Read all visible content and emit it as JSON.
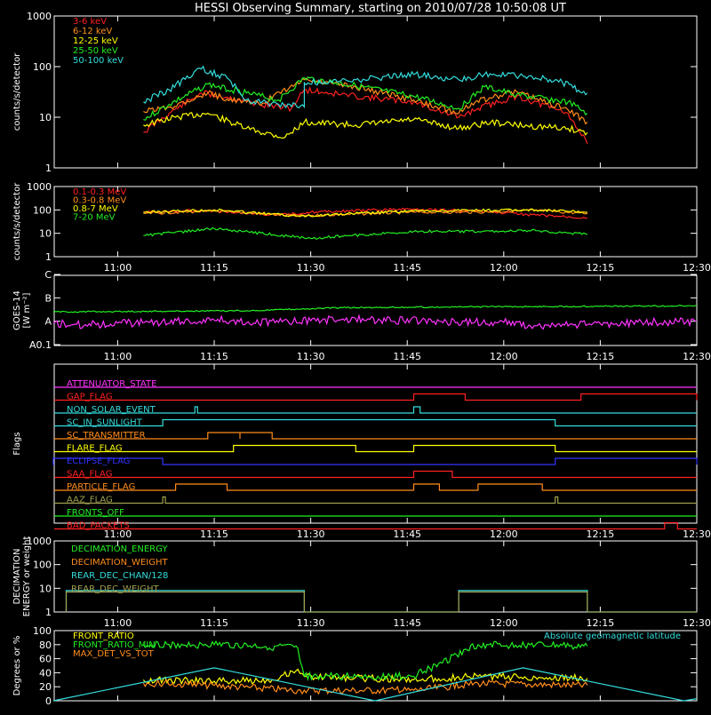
{
  "title": "HESSI Observing Summary, starting on 2010/07/28 10:50:08 UT",
  "time_ticks": [
    "11:00",
    "11:15",
    "11:30",
    "11:45",
    "12:00",
    "12:15",
    "12:30"
  ],
  "colors": {
    "background": "#000000",
    "axes": "#ffffff",
    "red": "#ff2020",
    "orange": "#ff8c1a",
    "yellow": "#ffff00",
    "green": "#22ee22",
    "cyan": "#33dddd",
    "magenta": "#ff33ff",
    "blue": "#3333ff",
    "olive": "#a0a050"
  },
  "chart_data": [
    {
      "id": "hxr",
      "type": "line",
      "ylabel": "counts/s/detector",
      "yscale": "log",
      "ylim": [
        1,
        1000
      ],
      "yticks": [
        "1",
        "10",
        "100",
        "1000"
      ],
      "legend": [
        {
          "name": "3-6 keV",
          "color": "#ff2020"
        },
        {
          "name": "6-12 keV",
          "color": "#ff8c1a"
        },
        {
          "name": "12-25 keV",
          "color": "#ffff00"
        },
        {
          "name": "25-50 keV",
          "color": "#22ee22"
        },
        {
          "name": "50-100 keV",
          "color": "#33dddd"
        }
      ],
      "series": [
        {
          "name": "3-6 keV",
          "color": "#ff2020",
          "points": [
            [
              "11:04",
              5
            ],
            [
              "11:08",
              12
            ],
            [
              "11:13",
              30
            ],
            [
              "11:17",
              25
            ],
            [
              "11:22",
              18
            ],
            [
              "11:27",
              15
            ],
            [
              "11:29",
              35
            ],
            [
              "11:37",
              26
            ],
            [
              "11:46",
              20
            ],
            [
              "11:53",
              10
            ],
            [
              "11:56",
              15
            ],
            [
              "12:02",
              26
            ],
            [
              "12:10",
              12
            ],
            [
              "12:13",
              3
            ]
          ]
        },
        {
          "name": "6-12 keV",
          "color": "#ff8c1a",
          "points": [
            [
              "11:04",
              13
            ],
            [
              "11:08",
              16
            ],
            [
              "11:14",
              30
            ],
            [
              "11:17",
              23
            ],
            [
              "11:22",
              18
            ],
            [
              "11:29",
              55
            ],
            [
              "11:37",
              40
            ],
            [
              "11:46",
              22
            ],
            [
              "11:53",
              12
            ],
            [
              "11:55",
              19
            ],
            [
              "12:02",
              32
            ],
            [
              "12:10",
              14
            ],
            [
              "12:13",
              8
            ]
          ]
        },
        {
          "name": "12-25 keV",
          "color": "#ffff00",
          "points": [
            [
              "11:04",
              7
            ],
            [
              "11:09",
              10
            ],
            [
              "11:14",
              12
            ],
            [
              "11:20",
              6
            ],
            [
              "11:26",
              4
            ],
            [
              "11:29",
              8
            ],
            [
              "11:37",
              7
            ],
            [
              "11:46",
              9
            ],
            [
              "11:53",
              6
            ],
            [
              "11:58",
              8
            ],
            [
              "12:02",
              7
            ],
            [
              "12:10",
              6
            ],
            [
              "12:13",
              5
            ]
          ]
        },
        {
          "name": "25-50 keV",
          "color": "#22ee22",
          "points": [
            [
              "11:04",
              9
            ],
            [
              "11:08",
              18
            ],
            [
              "11:14",
              45
            ],
            [
              "11:20",
              30
            ],
            [
              "11:25",
              22
            ],
            [
              "11:29",
              60
            ],
            [
              "11:37",
              42
            ],
            [
              "11:46",
              26
            ],
            [
              "11:53",
              15
            ],
            [
              "11:57",
              40
            ],
            [
              "12:02",
              28
            ],
            [
              "12:10",
              20
            ],
            [
              "12:13",
              12
            ]
          ]
        },
        {
          "name": "50-100 keV",
          "color": "#33dddd",
          "points": [
            [
              "11:04",
              20
            ],
            [
              "11:08",
              35
            ],
            [
              "11:13",
              90
            ],
            [
              "11:17",
              60
            ],
            [
              "11:20",
              22
            ],
            [
              "11:25",
              18
            ],
            [
              "11:29",
              16
            ],
            [
              "11:29",
              48
            ],
            [
              "11:37",
              55
            ],
            [
              "11:46",
              70
            ],
            [
              "11:53",
              55
            ],
            [
              "11:57",
              70
            ],
            [
              "12:03",
              65
            ],
            [
              "12:08",
              55
            ],
            [
              "12:13",
              30
            ]
          ]
        }
      ]
    },
    {
      "id": "gamma",
      "type": "line",
      "ylabel": "counts/s/detector",
      "yscale": "log",
      "ylim": [
        1,
        1000
      ],
      "yticks": [
        "1",
        "10",
        "100",
        "1000"
      ],
      "legend": [
        {
          "name": "0.1-0.3 MeV",
          "color": "#ff2020"
        },
        {
          "name": "0.3-0.8 MeV",
          "color": "#ff8c1a"
        },
        {
          "name": "0.8-7 MeV",
          "color": "#ffff00"
        },
        {
          "name": "7-20 MeV",
          "color": "#22ee22"
        }
      ],
      "series": [
        {
          "name": "0.1-0.3 MeV",
          "color": "#ff2020",
          "points": [
            [
              "11:04",
              80
            ],
            [
              "11:14",
              95
            ],
            [
              "11:25",
              60
            ],
            [
              "11:30",
              80
            ],
            [
              "11:46",
              110
            ],
            [
              "11:56",
              90
            ],
            [
              "12:05",
              60
            ],
            [
              "12:13",
              45
            ]
          ]
        },
        {
          "name": "0.3-0.8 MeV",
          "color": "#ff8c1a",
          "points": [
            [
              "11:04",
              70
            ],
            [
              "11:15",
              90
            ],
            [
              "11:28",
              55
            ],
            [
              "11:46",
              80
            ],
            [
              "11:56",
              80
            ],
            [
              "12:05",
              95
            ],
            [
              "12:13",
              70
            ]
          ]
        },
        {
          "name": "0.8-7 MeV",
          "color": "#ffff00",
          "points": [
            [
              "11:04",
              80
            ],
            [
              "11:15",
              100
            ],
            [
              "11:28",
              55
            ],
            [
              "11:46",
              90
            ],
            [
              "11:56",
              95
            ],
            [
              "12:05",
              100
            ],
            [
              "12:13",
              80
            ]
          ]
        },
        {
          "name": "7-20 MeV",
          "color": "#22ee22",
          "points": [
            [
              "11:04",
              8
            ],
            [
              "11:15",
              16
            ],
            [
              "11:30",
              6
            ],
            [
              "11:46",
              12
            ],
            [
              "11:56",
              12
            ],
            [
              "12:05",
              13
            ],
            [
              "12:13",
              9
            ]
          ]
        }
      ]
    },
    {
      "id": "goes",
      "type": "line",
      "ylabel": "GOES-14 [W m^-2]",
      "ylabel_lines": [
        "GOES-14",
        "[W m⁻²]"
      ],
      "yscale": "log",
      "yticks": [
        "A0.1",
        "A",
        "B",
        "C"
      ],
      "series": [
        {
          "name": "long",
          "color": "#22ee22",
          "points": [
            [
              "10:50",
              0.4
            ],
            [
              "11:20",
              0.45
            ],
            [
              "11:35",
              0.58
            ],
            [
              "12:00",
              0.62
            ],
            [
              "12:30",
              0.66
            ]
          ]
        },
        {
          "name": "short",
          "color": "#ff33ff",
          "points": [
            [
              "10:50",
              -0.1
            ],
            [
              "10:55",
              -0.15
            ],
            [
              "11:05",
              -0.05
            ],
            [
              "11:15",
              0.05
            ],
            [
              "11:25",
              -0.05
            ],
            [
              "11:35",
              0.1
            ],
            [
              "11:50",
              0.0
            ],
            [
              "12:00",
              -0.05
            ],
            [
              "12:05",
              -0.2
            ],
            [
              "12:15",
              -0.1
            ],
            [
              "12:30",
              0.0
            ]
          ]
        }
      ]
    },
    {
      "id": "flags",
      "type": "line",
      "ylabel": "Flags",
      "flags": [
        {
          "name": "ATTENUATOR_STATE",
          "color": "#ff33ff",
          "steps": []
        },
        {
          "name": "GAP_FLAG",
          "color": "#ff2020",
          "steps": [
            [
              "11:46",
              "11:54"
            ],
            [
              "12:12",
              "12:30"
            ]
          ]
        },
        {
          "name": "NON_SOLAR_EVENT",
          "color": "#33dddd",
          "steps": [
            [
              "11:12",
              "11:12"
            ],
            [
              "11:46",
              "11:47"
            ]
          ]
        },
        {
          "name": "SC_IN_SUNLIGHT",
          "color": "#33dddd",
          "steps": [
            [
              "11:07",
              "12:08"
            ]
          ]
        },
        {
          "name": "SC_TRANSMITTER",
          "color": "#ff8c1a",
          "steps": [
            [
              "11:14",
              "11:19"
            ],
            [
              "11:19",
              "11:24"
            ]
          ]
        },
        {
          "name": "FLARE_FLAG",
          "color": "#ffff00",
          "steps": [
            [
              "11:18",
              "11:37"
            ],
            [
              "11:46",
              "12:08"
            ]
          ]
        },
        {
          "name": "ECLIPSE_FLAG",
          "color": "#3333ff",
          "steps": [
            [
              "10:50",
              "11:07"
            ],
            [
              "12:08",
              "12:30"
            ]
          ]
        },
        {
          "name": "SAA_FLAG",
          "color": "#ff2020",
          "steps": [
            [
              "11:46",
              "11:52"
            ]
          ]
        },
        {
          "name": "PARTICLE_FLAG",
          "color": "#ff8c1a",
          "steps": [
            [
              "11:09",
              "11:17"
            ],
            [
              "11:46",
              "11:50"
            ],
            [
              "11:56",
              "12:06"
            ]
          ]
        },
        {
          "name": "AAZ_FLAG",
          "color": "#a0a050",
          "steps": [
            [
              "11:07",
              "11:07"
            ],
            [
              "12:08",
              "12:08"
            ]
          ]
        },
        {
          "name": "FRONTS_OFF",
          "color": "#22ee22",
          "steps": []
        },
        {
          "name": "BAD_PACKETS",
          "color": "#ff2020",
          "steps": [
            [
              "12:25",
              "12:27"
            ]
          ]
        }
      ]
    },
    {
      "id": "decimation",
      "type": "line",
      "ylabel": "DECIMATION ENERGY or weight",
      "ylabel_lines": [
        "DECIMATION",
        "ENERGY or weight"
      ],
      "yscale": "log",
      "ylim": [
        1,
        1000
      ],
      "yticks": [
        "1",
        "10",
        "100",
        "1000"
      ],
      "legend": [
        {
          "name": "DECIMATION_ENERGY",
          "color": "#22ee22"
        },
        {
          "name": "DECIMATION_WEIGHT",
          "color": "#ff8c1a"
        },
        {
          "name": "REAR_DEC_CHAN/128",
          "color": "#33dddd"
        },
        {
          "name": "REAR_DEC_WEIGHT",
          "color": "#a0a050"
        }
      ],
      "series": [
        {
          "name": "REAR_DEC_CHAN/128",
          "color": "#33dddd",
          "points": [
            [
              "10:52",
              1
            ],
            [
              "10:52",
              8
            ],
            [
              "11:29",
              8
            ],
            [
              "11:29",
              1
            ],
            [
              "11:53",
              1
            ],
            [
              "11:53",
              8
            ],
            [
              "12:13",
              8
            ],
            [
              "12:13",
              1
            ],
            [
              "12:30",
              1
            ]
          ]
        },
        {
          "name": "REAR_DEC_WEIGHT",
          "color": "#a0a050",
          "points": [
            [
              "10:52",
              1
            ],
            [
              "10:52",
              7
            ],
            [
              "11:29",
              7
            ],
            [
              "11:29",
              1
            ],
            [
              "11:53",
              1
            ],
            [
              "11:53",
              7
            ],
            [
              "12:13",
              7
            ],
            [
              "12:13",
              1
            ],
            [
              "12:30",
              1
            ]
          ]
        }
      ]
    },
    {
      "id": "ratios",
      "type": "line",
      "ylabel": "Degrees or %",
      "ylim": [
        0,
        100
      ],
      "yticks": [
        "0",
        "20",
        "40",
        "60",
        "80",
        "100"
      ],
      "legend": [
        {
          "name": "FRONT_RATIO",
          "color": "#ffff00"
        },
        {
          "name": "FRONT_RATIO_MIN",
          "color": "#22ee22"
        },
        {
          "name": "MAX_DET_VS_TOT",
          "color": "#ff8c1a"
        }
      ],
      "annotation": "Absolute geomagnetic latitude",
      "series": [
        {
          "name": "FRONT_RATIO",
          "color": "#ffff00",
          "points": [
            [
              "11:04",
              30
            ],
            [
              "11:15",
              28
            ],
            [
              "11:24",
              30
            ],
            [
              "11:28",
              45
            ],
            [
              "11:29",
              35
            ],
            [
              "11:46",
              30
            ],
            [
              "11:56",
              35
            ],
            [
              "12:13",
              32
            ]
          ]
        },
        {
          "name": "FRONT_RATIO_MIN",
          "color": "#22ee22",
          "points": [
            [
              "11:04",
              80
            ],
            [
              "11:15",
              80
            ],
            [
              "11:28",
              75
            ],
            [
              "11:29",
              35
            ],
            [
              "11:46",
              35
            ],
            [
              "11:56",
              80
            ],
            [
              "12:13",
              78
            ]
          ]
        },
        {
          "name": "MAX_DET_VS_TOT",
          "color": "#ff8c1a",
          "points": [
            [
              "11:04",
              25
            ],
            [
              "11:15",
              22
            ],
            [
              "11:28",
              15
            ],
            [
              "11:29",
              15
            ],
            [
              "11:46",
              15
            ],
            [
              "11:56",
              25
            ],
            [
              "12:13",
              22
            ]
          ]
        },
        {
          "name": "Absolute geomagnetic latitude",
          "color": "#33dddd",
          "points": [
            [
              "10:50",
              0
            ],
            [
              "11:15",
              47
            ],
            [
              "11:40",
              0
            ],
            [
              "12:03",
              47
            ],
            [
              "12:28",
              0
            ],
            [
              "12:30",
              3
            ]
          ]
        }
      ]
    }
  ]
}
